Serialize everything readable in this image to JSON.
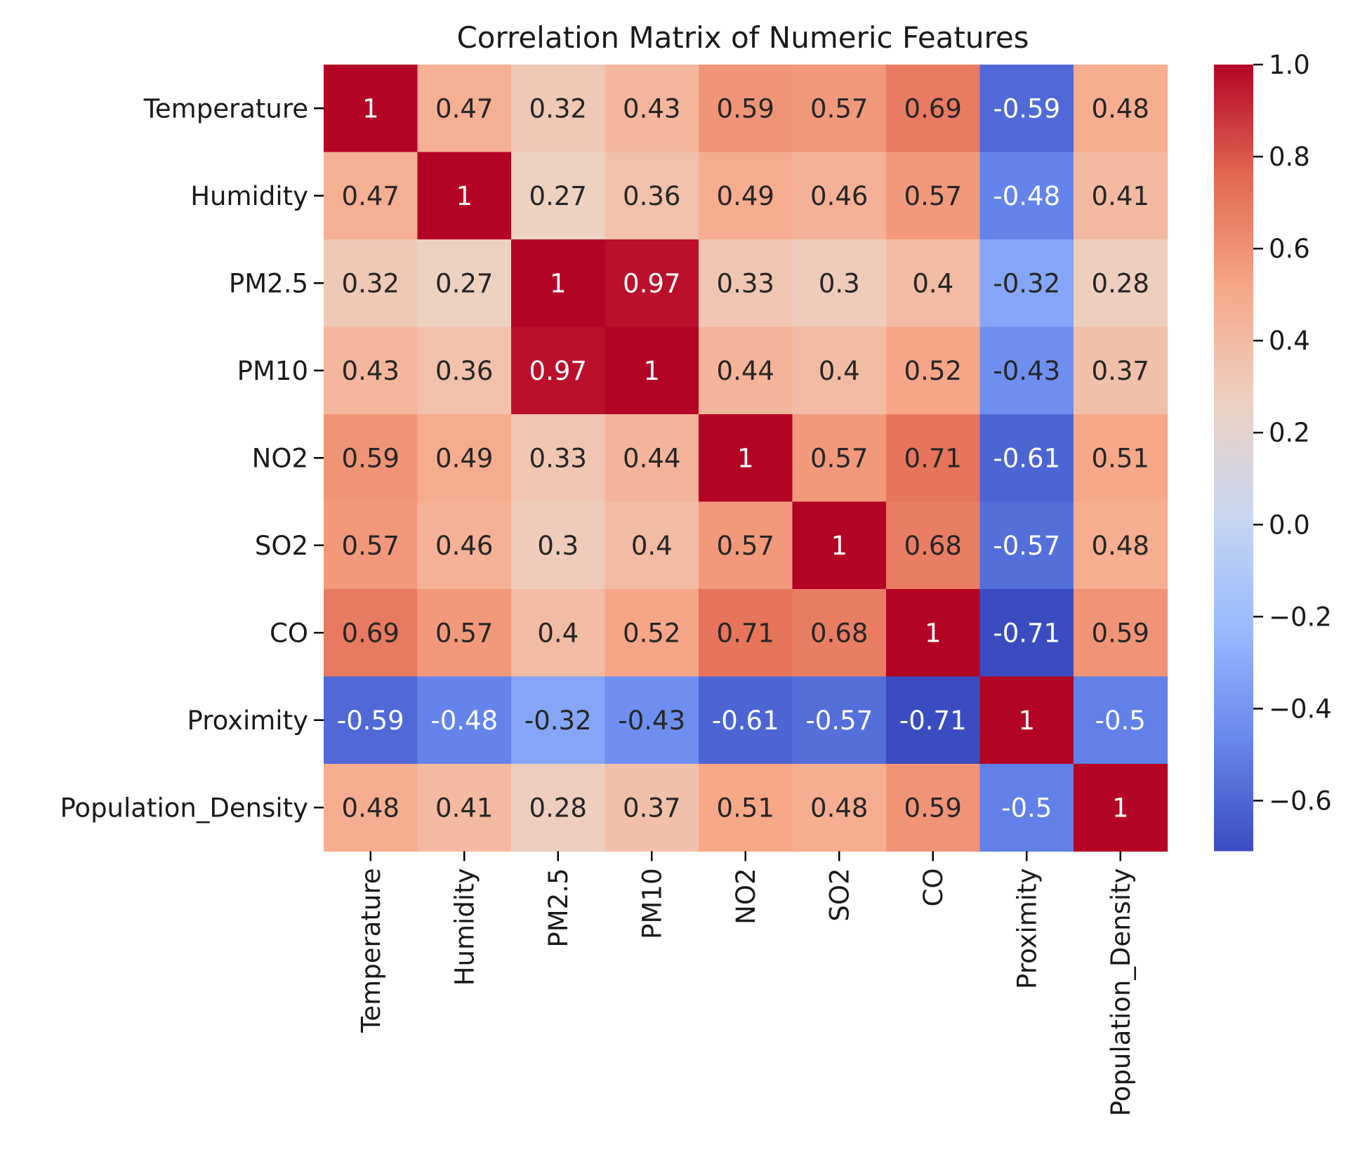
{
  "chart_data": {
    "type": "heatmap",
    "title": "Correlation Matrix of Numeric Features",
    "xlabel": "",
    "ylabel": "",
    "rows": [
      "Temperature",
      "Humidity",
      "PM2.5",
      "PM10",
      "NO2",
      "SO2",
      "CO",
      "Proximity",
      "Population_Density"
    ],
    "columns": [
      "Temperature",
      "Humidity",
      "PM2.5",
      "PM10",
      "NO2",
      "SO2",
      "CO",
      "Proximity",
      "Population_Density"
    ],
    "values": [
      [
        1,
        0.47,
        0.32,
        0.43,
        0.59,
        0.57,
        0.69,
        -0.59,
        0.48
      ],
      [
        0.47,
        1,
        0.27,
        0.36,
        0.49,
        0.46,
        0.57,
        -0.48,
        0.41
      ],
      [
        0.32,
        0.27,
        1,
        0.97,
        0.33,
        0.3,
        0.4,
        -0.32,
        0.28
      ],
      [
        0.43,
        0.36,
        0.97,
        1,
        0.44,
        0.4,
        0.52,
        -0.43,
        0.37
      ],
      [
        0.59,
        0.49,
        0.33,
        0.44,
        1,
        0.57,
        0.71,
        -0.61,
        0.51
      ],
      [
        0.57,
        0.46,
        0.3,
        0.4,
        0.57,
        1,
        0.68,
        -0.57,
        0.48
      ],
      [
        0.69,
        0.57,
        0.4,
        0.52,
        0.71,
        0.68,
        1,
        -0.71,
        0.59
      ],
      [
        -0.59,
        -0.48,
        -0.32,
        -0.43,
        -0.61,
        -0.57,
        -0.71,
        1,
        -0.5
      ],
      [
        0.48,
        0.41,
        0.28,
        0.37,
        0.51,
        0.48,
        0.59,
        -0.5,
        1
      ]
    ],
    "cell_labels": [
      [
        "1",
        "0.47",
        "0.32",
        "0.43",
        "0.59",
        "0.57",
        "0.69",
        "-0.59",
        "0.48"
      ],
      [
        "0.47",
        "1",
        "0.27",
        "0.36",
        "0.49",
        "0.46",
        "0.57",
        "-0.48",
        "0.41"
      ],
      [
        "0.32",
        "0.27",
        "1",
        "0.97",
        "0.33",
        "0.3",
        "0.4",
        "-0.32",
        "0.28"
      ],
      [
        "0.43",
        "0.36",
        "0.97",
        "1",
        "0.44",
        "0.4",
        "0.52",
        "-0.43",
        "0.37"
      ],
      [
        "0.59",
        "0.49",
        "0.33",
        "0.44",
        "1",
        "0.57",
        "0.71",
        "-0.61",
        "0.51"
      ],
      [
        "0.57",
        "0.46",
        "0.3",
        "0.4",
        "0.57",
        "1",
        "0.68",
        "-0.57",
        "0.48"
      ],
      [
        "0.69",
        "0.57",
        "0.4",
        "0.52",
        "0.71",
        "0.68",
        "1",
        "-0.71",
        "0.59"
      ],
      [
        "-0.59",
        "-0.48",
        "-0.32",
        "-0.43",
        "-0.61",
        "-0.57",
        "-0.71",
        "1",
        "-0.5"
      ],
      [
        "0.48",
        "0.41",
        "0.28",
        "0.37",
        "0.51",
        "0.48",
        "0.59",
        "-0.5",
        "1"
      ]
    ],
    "colormap": "coolwarm",
    "color_range": [
      -0.71,
      1.0
    ],
    "colorbar_ticks": [
      1.0,
      0.8,
      0.6,
      0.4,
      0.2,
      0.0,
      -0.2,
      -0.4,
      -0.6
    ],
    "colorbar_tick_labels": [
      "1.0",
      "0.8",
      "0.6",
      "0.4",
      "0.2",
      "0.0",
      "−0.2",
      "−0.4",
      "−0.6"
    ],
    "colormap_stops": [
      "#3b4cc0",
      "#6788ee",
      "#9abbff",
      "#c9d7f0",
      "#edd1c2",
      "#f7a889",
      "#e26952",
      "#b40426"
    ],
    "grid": false,
    "legend": "colorbar-right"
  }
}
